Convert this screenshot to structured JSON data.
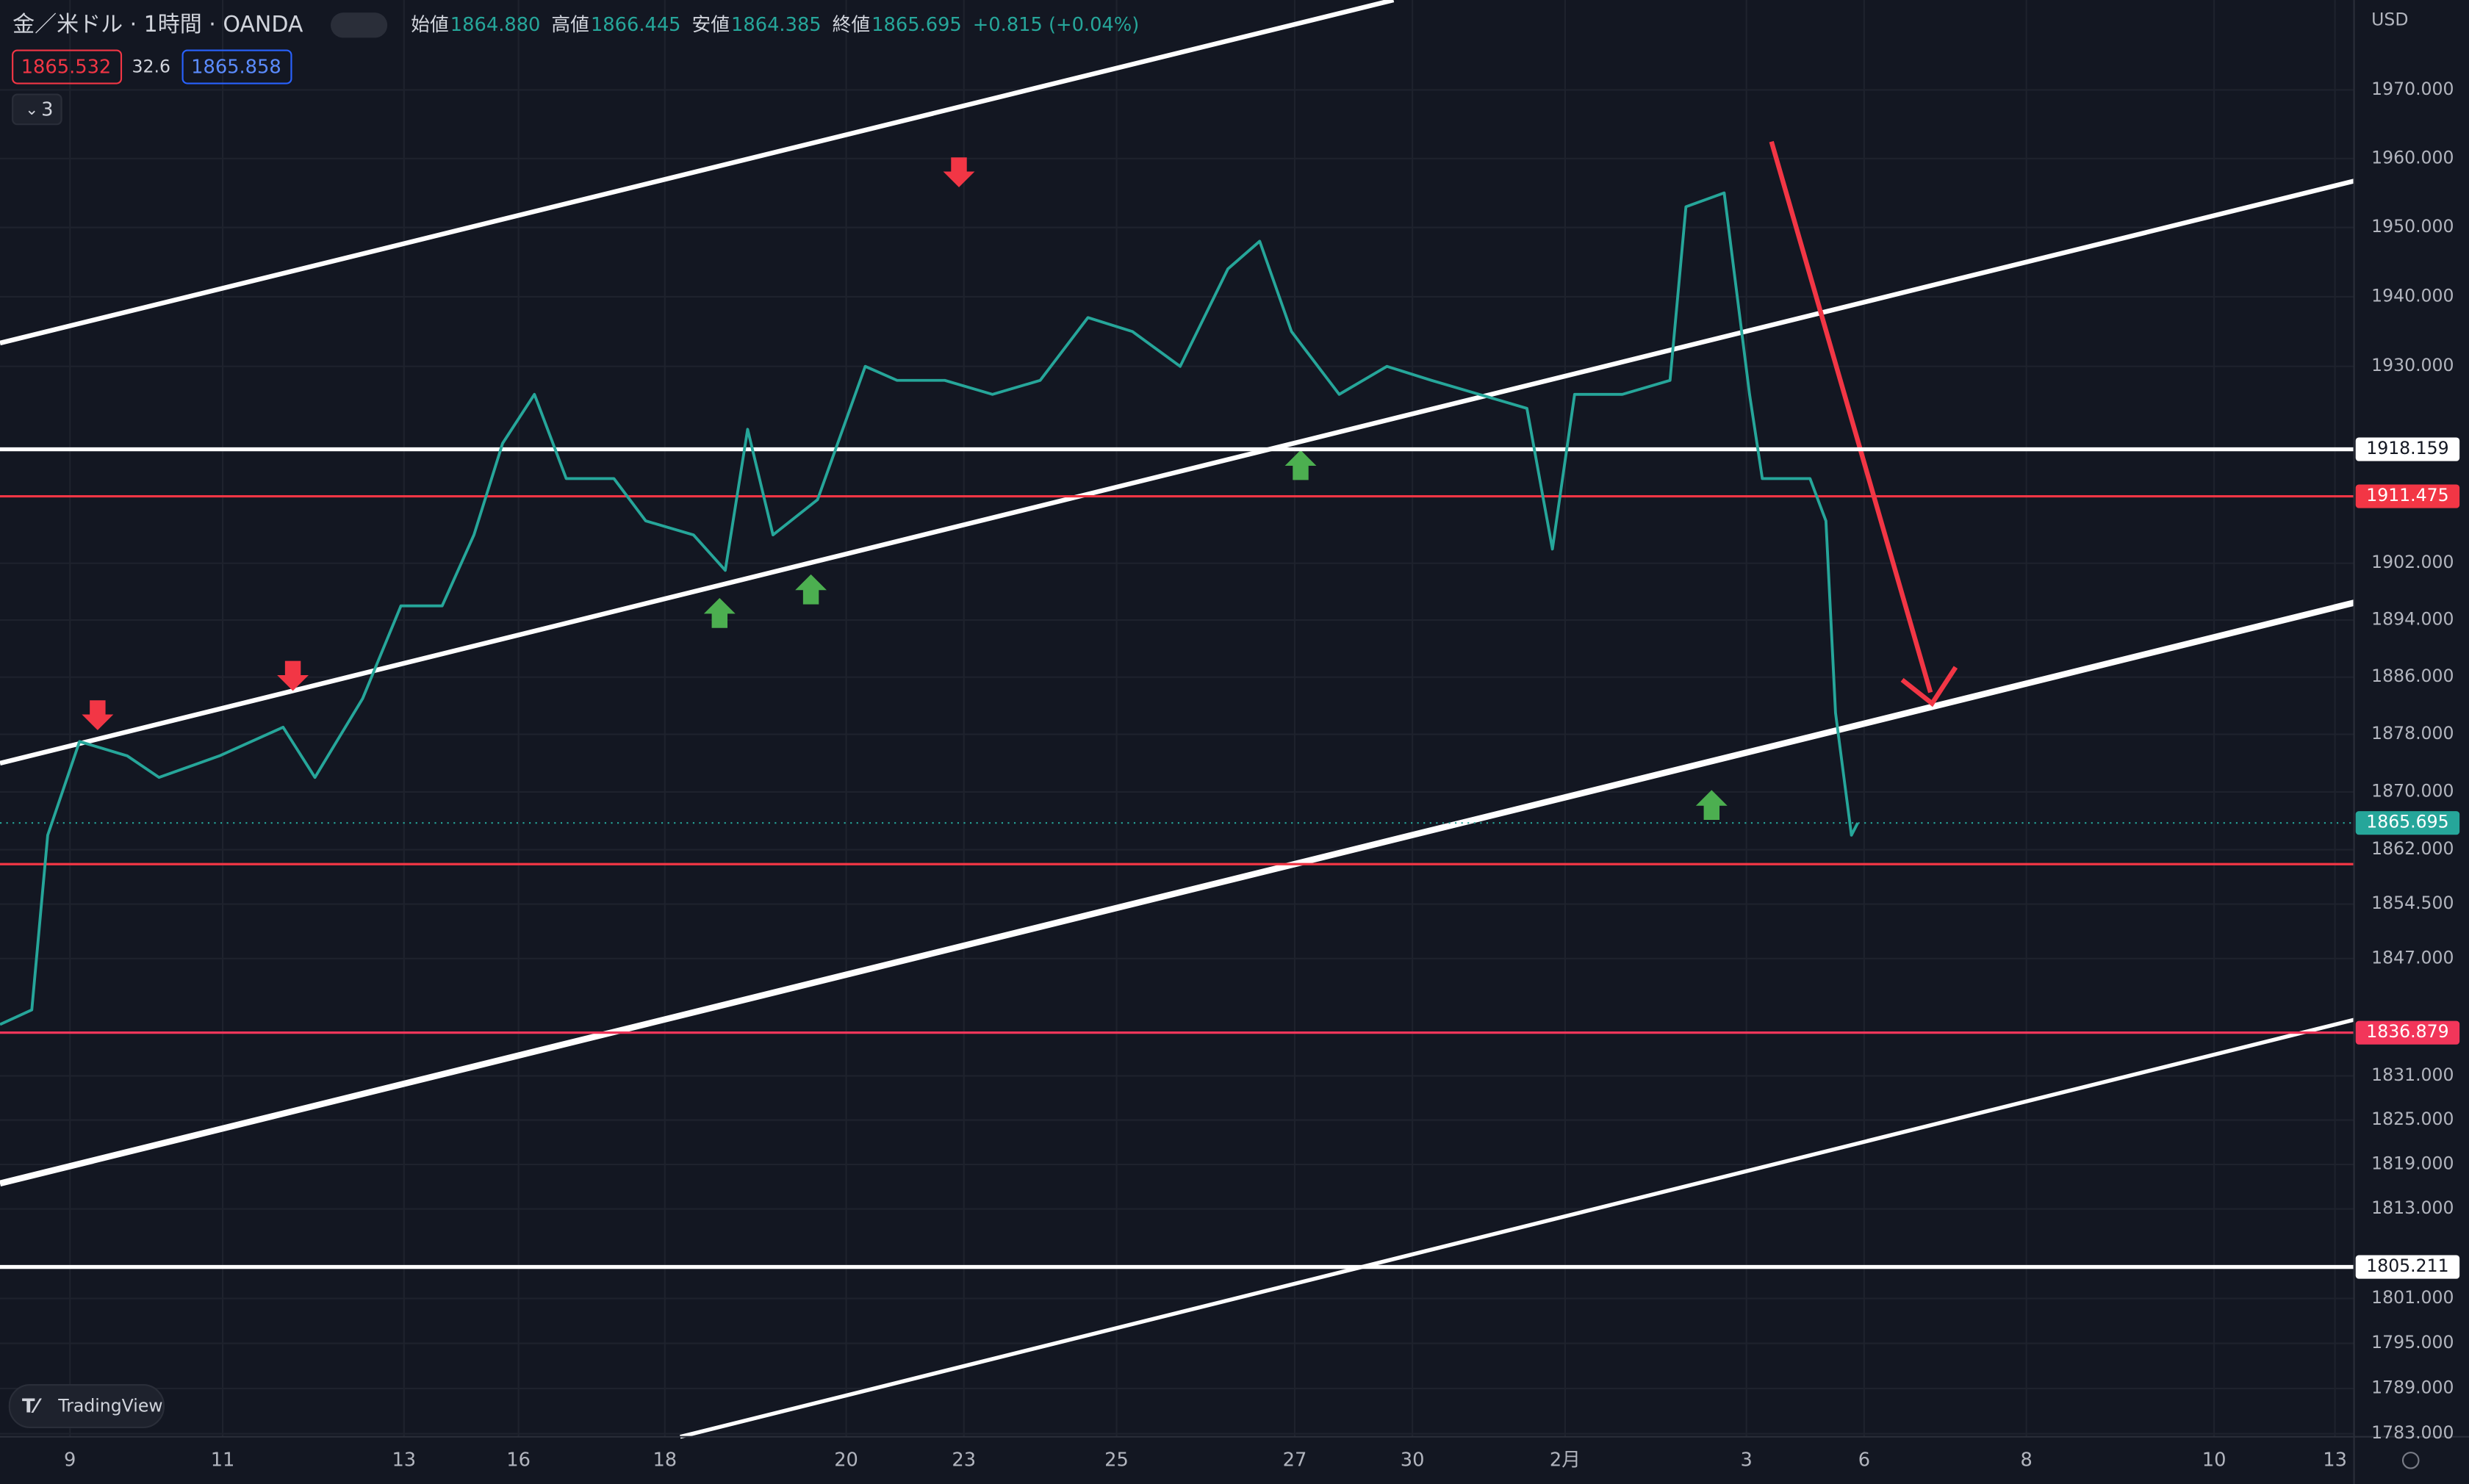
{
  "chart_data": {
    "type": "line",
    "title": "金／米ドル · 1時間 · OANDA",
    "ohlc": [
      {
        "label": "始値",
        "value": "1864.880"
      },
      {
        "label": "高値",
        "value": "1866.445"
      },
      {
        "label": "安値",
        "value": "1864.385"
      },
      {
        "label": "終値",
        "value": "1865.695"
      }
    ],
    "change": "+0.815 (+0.04%)",
    "bid": "1865.532",
    "spread": "32.6",
    "ask": "1865.858",
    "indicators_count": "3",
    "currency": "USD",
    "brand": "TradingView",
    "log": true,
    "grid": true,
    "color": "#26a69a",
    "x": [
      0,
      10,
      15,
      25,
      40,
      50,
      69,
      89,
      99,
      114,
      126,
      139,
      149,
      158,
      168,
      178,
      193,
      203,
      218,
      228,
      235,
      243,
      257,
      272,
      282,
      297,
      312,
      327,
      342,
      356,
      371,
      386,
      396,
      406,
      421,
      436,
      450,
      465,
      480,
      488,
      495,
      510,
      525,
      530,
      542,
      550,
      554,
      569,
      574,
      577,
      582,
      584
    ],
    "values": [
      1838,
      1840,
      1864,
      1877,
      1875,
      1872,
      1875,
      1879,
      1872,
      1883,
      1896,
      1896,
      1906,
      1919,
      1926,
      1914,
      1914,
      1908,
      1906,
      1901,
      1921,
      1906,
      1911,
      1930,
      1928,
      1928,
      1926,
      1928,
      1937,
      1935,
      1930,
      1944,
      1948,
      1935,
      1926,
      1930,
      1928,
      1926,
      1924,
      1904,
      1926,
      1926,
      1928,
      1953,
      1955,
      1926,
      1914,
      1914,
      1908,
      1881,
      1864,
      1865.695
    ],
    "xlim": [
      0,
      740
    ],
    "xticks": [
      {
        "value": 22,
        "label": "9"
      },
      {
        "value": 70,
        "label": "11"
      },
      {
        "value": 127,
        "label": "13"
      },
      {
        "value": 163,
        "label": "16"
      },
      {
        "value": 209,
        "label": "18"
      },
      {
        "value": 266,
        "label": "20"
      },
      {
        "value": 303,
        "label": "23"
      },
      {
        "value": 351,
        "label": "25"
      },
      {
        "value": 407,
        "label": "27"
      },
      {
        "value": 444,
        "label": "30"
      },
      {
        "value": 492,
        "label": "2月"
      },
      {
        "value": 549,
        "label": "3"
      },
      {
        "value": 586,
        "label": "6"
      },
      {
        "value": 637,
        "label": "8"
      },
      {
        "value": 696,
        "label": "10"
      },
      {
        "value": 734,
        "label": "13"
      }
    ],
    "ylim": [
      1782.6,
      1983.2
    ],
    "yticks": [
      {
        "value": 1970,
        "label": "1970.000"
      },
      {
        "value": 1960,
        "label": "1960.000"
      },
      {
        "value": 1950,
        "label": "1950.000"
      },
      {
        "value": 1940,
        "label": "1940.000"
      },
      {
        "value": 1930,
        "label": "1930.000"
      },
      {
        "value": 1902,
        "label": "1902.000"
      },
      {
        "value": 1894,
        "label": "1894.000"
      },
      {
        "value": 1886,
        "label": "1886.000"
      },
      {
        "value": 1878,
        "label": "1878.000"
      },
      {
        "value": 1870,
        "label": "1870.000"
      },
      {
        "value": 1862,
        "label": "1862.000"
      },
      {
        "value": 1854.5,
        "label": "1854.500"
      },
      {
        "value": 1847,
        "label": "1847.000"
      },
      {
        "value": 1831,
        "label": "1831.000"
      },
      {
        "value": 1825,
        "label": "1825.000"
      },
      {
        "value": 1819,
        "label": "1819.000"
      },
      {
        "value": 1813,
        "label": "1813.000"
      },
      {
        "value": 1801,
        "label": "1801.000"
      },
      {
        "value": 1795,
        "label": "1795.000"
      },
      {
        "value": 1789,
        "label": "1789.000"
      },
      {
        "value": 1783,
        "label": "1783.000"
      }
    ],
    "level_lines": [
      {
        "value": 1918.159,
        "color": "#ffffff",
        "labeled": true
      },
      {
        "value": 1911.475,
        "color": "#f23645",
        "labeled": true
      },
      {
        "value": 1860,
        "color": "#f23645",
        "labeled": false
      },
      {
        "value": 1836.879,
        "color": "#f2365a",
        "labeled": true
      },
      {
        "value": 1805.211,
        "color": "#ffffff",
        "labeled": true
      }
    ],
    "last_price": {
      "value": 1865.695,
      "label": "1865.695",
      "color": "#26a69a"
    }
  }
}
